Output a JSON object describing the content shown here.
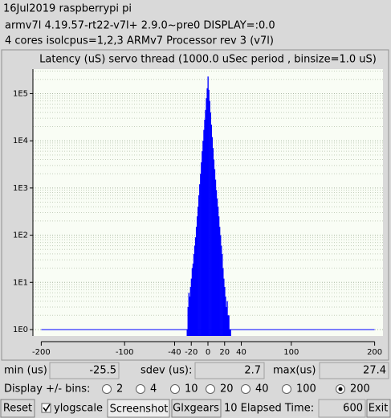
{
  "header": {
    "line1": "16Jul2019 raspberrypi pi",
    "line2": "armv7l  4.19.57-rt22-v7l+  2.9.0~pre0  DISPLAY=:0.0",
    "line3": "4 cores  isolcpus=1,2,3    ARMv7 Processor rev 3 (v7l)"
  },
  "chart_data": {
    "type": "histogram",
    "title": "Latency (uS) servo thread (1000.0 uSec period , binsize=1.0 uS)",
    "bins": [
      -25.5,
      -24.5,
      -23.5,
      -22.5,
      -21.5,
      -20.5,
      -19.5,
      -18.5,
      -17.5,
      -16.5,
      -15.5,
      -14.5,
      -13.5,
      -12.5,
      -11.5,
      -10.5,
      -9.5,
      -8.5,
      -7.5,
      -6.5,
      -5.5,
      -4.5,
      -3.5,
      -2.5,
      -1.5,
      -0.5,
      0.5,
      1.5,
      2.5,
      3.5,
      4.5,
      5.5,
      6.5,
      7.5,
      8.5,
      9.5,
      10.5,
      11.5,
      12.5,
      13.5,
      14.5,
      15.5,
      16.5,
      17.5,
      18.5,
      19.5,
      20.5,
      21.5,
      22.5,
      23.5,
      24.5,
      25.5,
      26.5,
      27.5
    ],
    "values": [
      1,
      3,
      6,
      5,
      8,
      12,
      20,
      25,
      40,
      60,
      90,
      150,
      250,
      400,
      700,
      1200,
      2000,
      3500,
      6000,
      10000,
      17000,
      28000,
      45000,
      80000,
      130000,
      230000,
      120000,
      70000,
      40000,
      22000,
      12000,
      7000,
      4000,
      2500,
      1500,
      900,
      600,
      400,
      250,
      150,
      100,
      60,
      40,
      20,
      12,
      8,
      5,
      3,
      4,
      2,
      2,
      1,
      1
    ],
    "color": "#0000ff",
    "log_y": true,
    "grid": true,
    "xlim": [
      -210,
      210
    ],
    "ylim": [
      0.73,
      330000
    ],
    "xticks": [
      -200,
      -100,
      -40,
      -20,
      0,
      20,
      40,
      100,
      200
    ],
    "yticks": [
      {
        "value": 1,
        "label": "1E0"
      },
      {
        "value": 10,
        "label": "1E1"
      },
      {
        "value": 100,
        "label": "1E2"
      },
      {
        "value": 1000,
        "label": "1E3"
      },
      {
        "value": 10000,
        "label": "1E4"
      },
      {
        "value": 100000,
        "label": "1E5"
      }
    ]
  },
  "stats": {
    "min_label": "min (us)",
    "min": "-25.5",
    "sdev_label": "sdev (us):",
    "sdev": "2.7",
    "max_label": "max(us)",
    "max": "27.4"
  },
  "bins_control": {
    "label": "Display +/- bins:",
    "options": [
      "2",
      "4",
      "10",
      "20",
      "40",
      "100",
      "200"
    ],
    "selected": "200"
  },
  "toolbar": {
    "reset": "Reset",
    "ylogscale": "ylogscale",
    "ylogscale_checked": true,
    "screenshot": "Screenshot",
    "glxgears": "Glxgears",
    "elapsed_label": "10 Elapsed Time:",
    "elapsed": "600",
    "exit": "Exit"
  }
}
